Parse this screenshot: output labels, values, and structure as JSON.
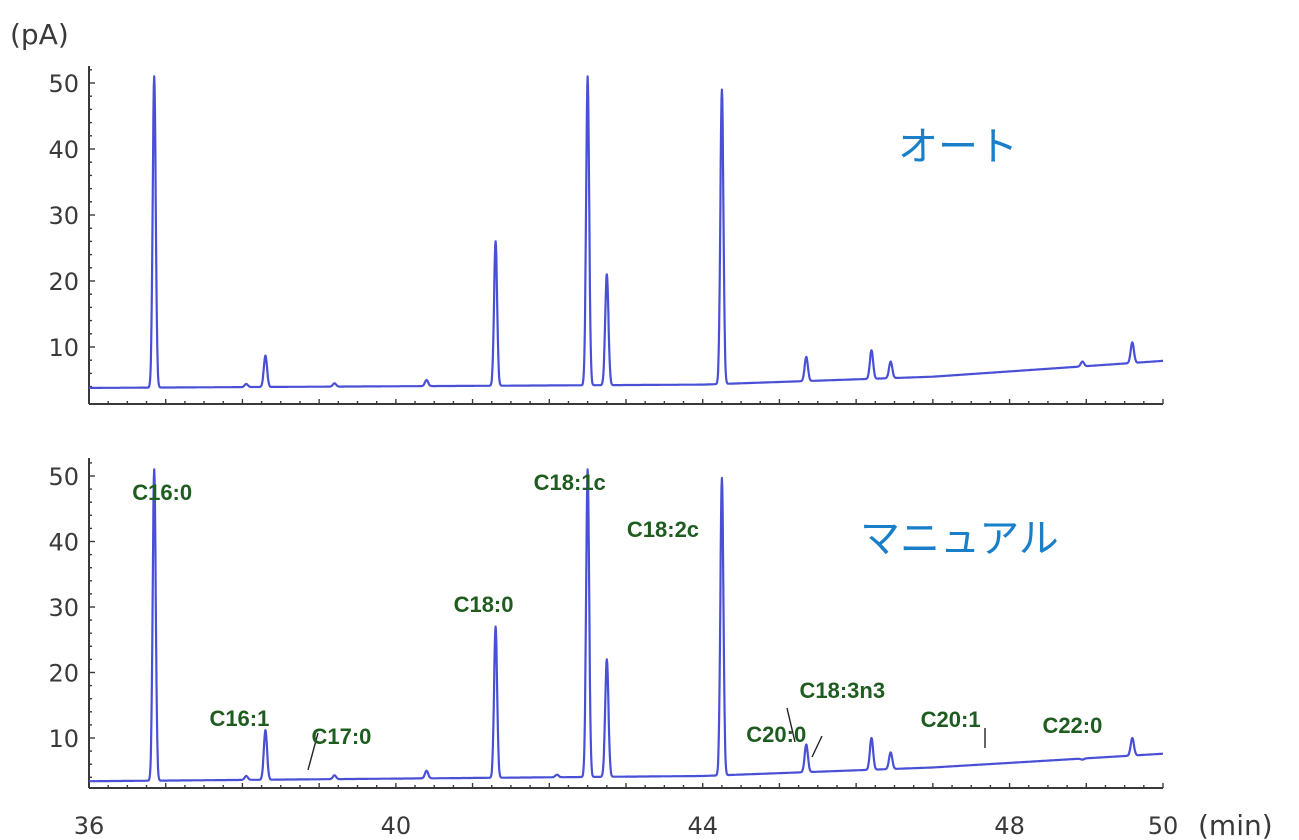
{
  "chart_data": [
    {
      "type": "line",
      "title": "オート",
      "ylabel": "(pA)",
      "xlabel": "(min)",
      "xlim": [
        36,
        50
      ],
      "ylim": [
        2,
        51
      ],
      "yticks": [
        10,
        20,
        30,
        40,
        50
      ],
      "xticks": [
        36,
        40,
        44,
        48,
        50
      ],
      "baseline": [
        [
          36.0,
          3.8
        ],
        [
          44.0,
          4.3
        ],
        [
          47.0,
          5.5
        ],
        [
          50.0,
          7.9
        ]
      ],
      "peaks": [
        {
          "x": 36.85,
          "y": 51
        },
        {
          "x": 38.05,
          "y": 4.4
        },
        {
          "x": 38.3,
          "y": 8.7
        },
        {
          "x": 39.2,
          "y": 4.5
        },
        {
          "x": 40.4,
          "y": 5.0
        },
        {
          "x": 41.3,
          "y": 26.0
        },
        {
          "x": 42.5,
          "y": 51
        },
        {
          "x": 42.75,
          "y": 21.0
        },
        {
          "x": 44.25,
          "y": 49.0
        },
        {
          "x": 45.35,
          "y": 8.5
        },
        {
          "x": 46.2,
          "y": 9.5
        },
        {
          "x": 46.45,
          "y": 7.8
        },
        {
          "x": 48.95,
          "y": 7.8
        },
        {
          "x": 49.6,
          "y": 10.7
        }
      ]
    },
    {
      "type": "line",
      "title": "マニュアル",
      "xlabel": "(min)",
      "xlim": [
        36,
        50
      ],
      "ylim": [
        2,
        51
      ],
      "yticks": [
        10,
        20,
        30,
        40,
        50
      ],
      "xticks": [
        36,
        40,
        44,
        48,
        50
      ],
      "baseline": [
        [
          36.0,
          3.4
        ],
        [
          44.0,
          4.2
        ],
        [
          47.0,
          5.5
        ],
        [
          50.0,
          7.6
        ]
      ],
      "peaks": [
        {
          "x": 36.85,
          "y": 51
        },
        {
          "x": 38.05,
          "y": 4.2
        },
        {
          "x": 38.3,
          "y": 11.2
        },
        {
          "x": 39.2,
          "y": 4.3
        },
        {
          "x": 40.4,
          "y": 5.0
        },
        {
          "x": 41.3,
          "y": 27.0
        },
        {
          "x": 42.1,
          "y": 4.4
        },
        {
          "x": 42.5,
          "y": 51
        },
        {
          "x": 42.75,
          "y": 22.0
        },
        {
          "x": 44.25,
          "y": 49.7
        },
        {
          "x": 45.35,
          "y": 9.0
        },
        {
          "x": 46.2,
          "y": 10.0
        },
        {
          "x": 46.45,
          "y": 7.8
        },
        {
          "x": 48.95,
          "y": 6.7
        },
        {
          "x": 49.6,
          "y": 10.0
        }
      ],
      "annotations": [
        {
          "text": "C16:0",
          "x": 36.85
        },
        {
          "text": "C16:1",
          "x": 38.3
        },
        {
          "text": "C17:0",
          "x": 39.2
        },
        {
          "text": "C18:0",
          "x": 41.3
        },
        {
          "text": "C18:1c",
          "x": 42.5
        },
        {
          "text": "C18:2c",
          "x": 44.25
        },
        {
          "text": "C20:0",
          "x": 45.35
        },
        {
          "text": "C18:3n3",
          "x": 46.2
        },
        {
          "text": "C20:1",
          "x": 46.45
        },
        {
          "text": "C22:0",
          "x": 48.95
        }
      ]
    }
  ]
}
